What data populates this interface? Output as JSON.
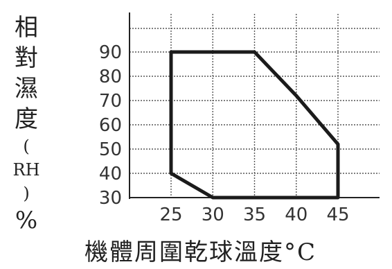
{
  "chart_data": {
    "type": "line",
    "title": "",
    "xlabel": "機體周圍乾球溫度°C",
    "ylabel": "相對濕度(RH)%",
    "ylabel_chars": [
      "相",
      "對",
      "濕",
      "度",
      "(",
      "RH",
      ")",
      "%"
    ],
    "x_ticks": [
      25,
      30,
      35,
      40,
      45
    ],
    "y_ticks": [
      30,
      40,
      50,
      60,
      70,
      80,
      90
    ],
    "xlim": [
      25,
      45
    ],
    "ylim": [
      30,
      90
    ],
    "grid": true,
    "series": [
      {
        "x": [
          25,
          25,
          35,
          40,
          45,
          45,
          30,
          25
        ],
        "y": [
          40,
          90,
          90,
          72,
          52,
          30,
          30,
          40
        ]
      }
    ]
  }
}
